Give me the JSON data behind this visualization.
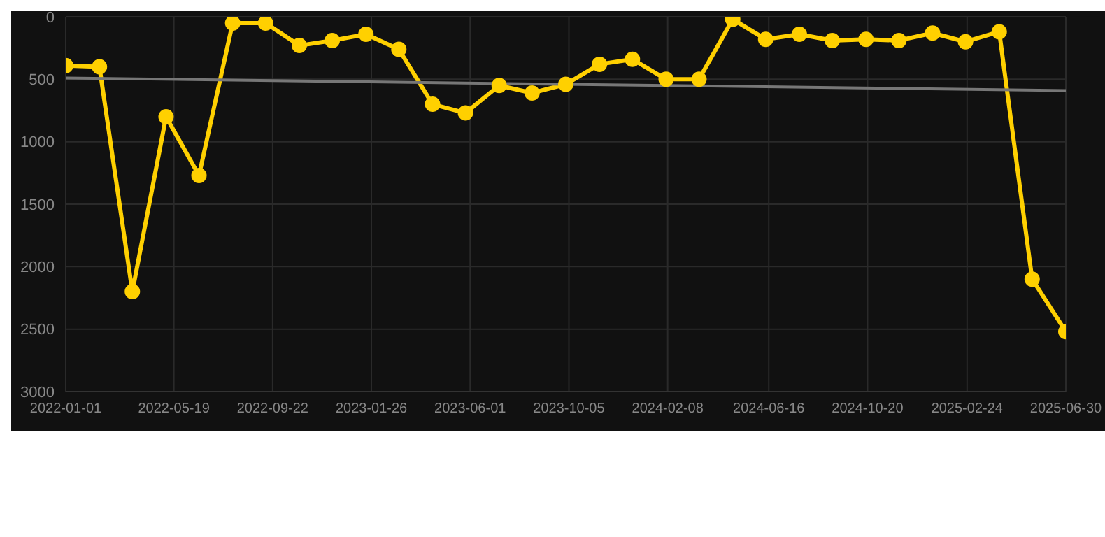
{
  "chart_data": {
    "type": "line",
    "x": [
      "2022-01-01",
      "2022-02-13",
      "2022-03-27",
      "2022-05-09",
      "2022-06-20",
      "2022-08-02",
      "2022-09-13",
      "2022-10-26",
      "2022-12-07",
      "2023-01-19",
      "2023-03-02",
      "2023-04-14",
      "2023-05-26",
      "2023-07-08",
      "2023-08-19",
      "2023-10-01",
      "2023-11-13",
      "2023-12-25",
      "2024-02-06",
      "2024-03-19",
      "2024-05-01",
      "2024-06-12",
      "2024-07-25",
      "2024-09-05",
      "2024-10-18",
      "2024-11-29",
      "2025-01-11",
      "2025-02-22",
      "2025-04-06",
      "2025-05-18",
      "2025-06-30"
    ],
    "series": [
      {
        "color": "#ffd000",
        "marker": "circle",
        "values": [
          390,
          400,
          2200,
          800,
          1270,
          50,
          50,
          230,
          190,
          140,
          260,
          700,
          770,
          550,
          610,
          540,
          380,
          340,
          500,
          500,
          20,
          180,
          140,
          190,
          180,
          190,
          130,
          200,
          120,
          2100,
          2520
        ]
      },
      {
        "type": "line",
        "color": "#777777",
        "marker": "none",
        "x": [
          "2022-01-01",
          "2025-06-30"
        ],
        "values": [
          490,
          590
        ]
      }
    ],
    "ylim": [
      3000,
      0
    ],
    "yticks": [
      0,
      500,
      1000,
      1500,
      2000,
      2500,
      3000
    ],
    "xlim": [
      "2022-01-01",
      "2025-06-30"
    ],
    "xticks": [
      "2022-01-01",
      "2022-05-19",
      "2022-09-22",
      "2023-01-26",
      "2023-06-01",
      "2023-10-05",
      "2024-02-08",
      "2024-06-16",
      "2024-10-20",
      "2025-02-24",
      "2025-06-30"
    ],
    "grid": true
  }
}
